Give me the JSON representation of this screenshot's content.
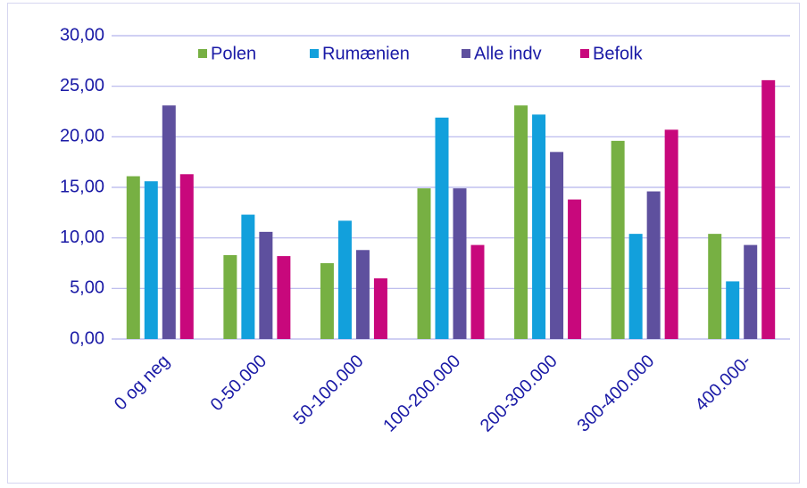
{
  "chart_data": {
    "type": "bar",
    "categories": [
      "0 og neg",
      "0-50.000",
      "50-100.000",
      "100-200.000",
      "200-300.000",
      "300-400.000",
      "400.000-"
    ],
    "series": [
      {
        "name": "Polen",
        "color": "#77b043",
        "values": [
          16.1,
          8.3,
          7.5,
          14.9,
          23.1,
          19.6,
          10.4
        ]
      },
      {
        "name": "Rumænien",
        "color": "#12a0dc",
        "values": [
          15.6,
          12.3,
          11.7,
          21.9,
          22.2,
          10.4,
          5.7
        ]
      },
      {
        "name": "Alle indv",
        "color": "#5e509e",
        "values": [
          23.1,
          10.6,
          8.8,
          14.9,
          18.5,
          14.6,
          9.3
        ]
      },
      {
        "name": "Befolk",
        "color": "#c8087c",
        "values": [
          16.3,
          8.2,
          6.0,
          9.3,
          13.8,
          20.7,
          25.6
        ]
      }
    ],
    "ylim": [
      0,
      30
    ],
    "yticks": [
      {
        "value": 0,
        "label": "0,00"
      },
      {
        "value": 5,
        "label": "5,00"
      },
      {
        "value": 10,
        "label": "10,00"
      },
      {
        "value": 15,
        "label": "15,00"
      },
      {
        "value": 20,
        "label": "20,00"
      },
      {
        "value": 25,
        "label": "25,00"
      },
      {
        "value": 30,
        "label": "30,00"
      }
    ],
    "grid": true,
    "legend": "top"
  }
}
